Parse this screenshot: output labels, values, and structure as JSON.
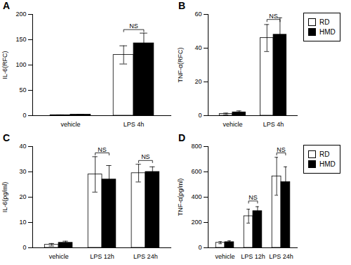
{
  "chart_data": [
    {
      "type": "bar",
      "title": "A",
      "ylabel": "IL-6(RFC)",
      "categories": [
        "vehicle",
        "LPS 4h"
      ],
      "ylim": [
        0,
        200
      ],
      "yticks": [
        0,
        50,
        100,
        150,
        200
      ],
      "series": [
        {
          "name": "RD",
          "color": "#ffffff",
          "values": [
            1,
            120
          ],
          "errors": [
            0.5,
            18
          ]
        },
        {
          "name": "HMD",
          "color": "#000000",
          "values": [
            2,
            143
          ],
          "errors": [
            0.5,
            20
          ]
        }
      ],
      "annotations": [
        {
          "text": "NS",
          "category": "LPS 4h",
          "y": 170
        }
      ]
    },
    {
      "type": "bar",
      "title": "B",
      "ylabel": "TNF-α(RFC)",
      "categories": [
        "vehicle",
        "LPS 4h"
      ],
      "ylim": [
        0,
        60
      ],
      "yticks": [
        0,
        20,
        40,
        60
      ],
      "series": [
        {
          "name": "RD",
          "color": "#ffffff",
          "values": [
            1,
            46
          ],
          "errors": [
            0.5,
            8
          ]
        },
        {
          "name": "HMD",
          "color": "#000000",
          "values": [
            2,
            48
          ],
          "errors": [
            0.8,
            10
          ]
        }
      ],
      "annotations": [
        {
          "text": "NS",
          "category": "LPS 4h",
          "y": 57
        }
      ],
      "legend": "right"
    },
    {
      "type": "bar",
      "title": "C",
      "ylabel": "IL-6(pg/ml)",
      "categories": [
        "vehicle",
        "LPS 12h",
        "LPS 24h"
      ],
      "ylim": [
        0,
        40
      ],
      "yticks": [
        0,
        10,
        20,
        30,
        40
      ],
      "series": [
        {
          "name": "RD",
          "color": "#ffffff",
          "values": [
            1.2,
            29,
            29.5
          ],
          "errors": [
            0.5,
            7,
            3.5
          ]
        },
        {
          "name": "HMD",
          "color": "#000000",
          "values": [
            2.0,
            27,
            30
          ],
          "errors": [
            0.6,
            5.5,
            2
          ]
        }
      ],
      "annotations": [
        {
          "text": "NS",
          "category": "LPS 12h",
          "y": 37.5
        },
        {
          "text": "NS",
          "category": "LPS 24h",
          "y": 34.5
        }
      ]
    },
    {
      "type": "bar",
      "title": "D",
      "ylabel": "TNF-α(pg/ml)",
      "categories": [
        "vehicle",
        "LPS 12h",
        "LPS 24h"
      ],
      "ylim": [
        0,
        800
      ],
      "yticks": [
        0,
        200,
        400,
        600,
        800
      ],
      "series": [
        {
          "name": "RD",
          "color": "#ffffff",
          "values": [
            40,
            250,
            565
          ],
          "errors": [
            8,
            55,
            150
          ]
        },
        {
          "name": "HMD",
          "color": "#000000",
          "values": [
            45,
            290,
            520
          ],
          "errors": [
            10,
            35,
            120
          ]
        }
      ],
      "annotations": [
        {
          "text": "NS",
          "category": "LPS 12h",
          "y": 370
        },
        {
          "text": "NS",
          "category": "LPS 24h",
          "y": 750
        }
      ],
      "legend": "right"
    }
  ]
}
